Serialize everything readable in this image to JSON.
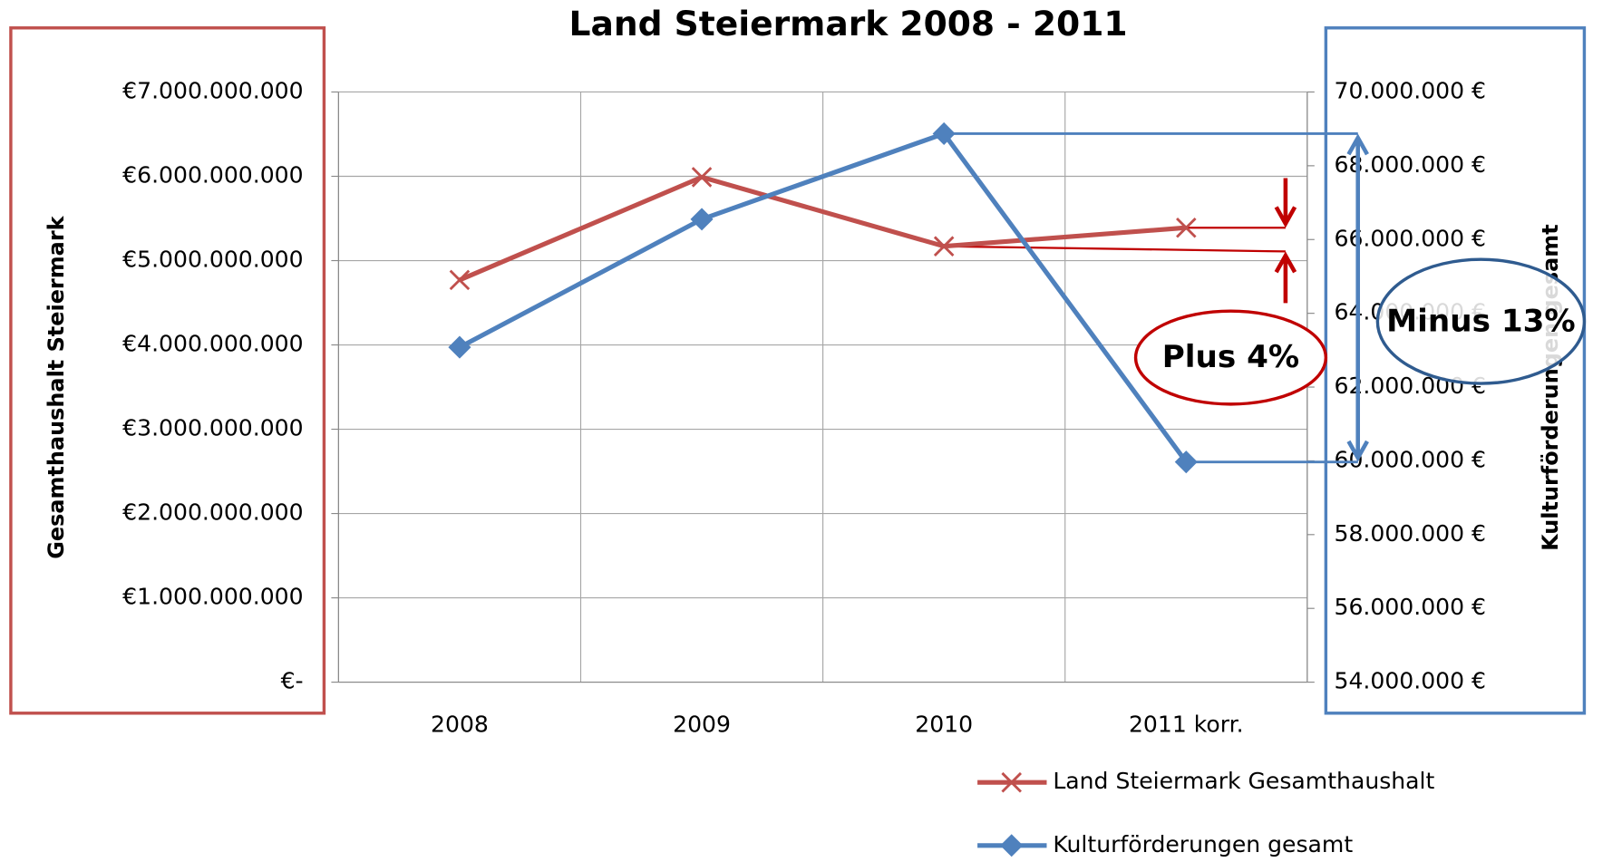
{
  "chart_data": {
    "type": "line",
    "title": "Land Steiermark 2008 - 2011",
    "y_label": "Gesamthaushalt  Steiermark",
    "y2_label": "Kulturförderungen gesamt",
    "categories": [
      "2008",
      "2009",
      "2010",
      "2011 korr."
    ],
    "series": [
      {
        "name": "Land Steiermark Gesamthaushalt",
        "color": "#c0504d",
        "marker": "x",
        "values": [
          4770000000,
          5990000000,
          5170000000,
          5390000000
        ]
      },
      {
        "name": "Kulturförderungen gesamt",
        "color": "#4f81bd",
        "marker": "diamond",
        "axis": "y2",
        "values": [
          63080000,
          66550000,
          68870000,
          59970000
        ]
      }
    ],
    "ylim": [
      0,
      7000000000
    ],
    "yticks": [
      {
        "value": 0,
        "label": "€-"
      },
      {
        "value": 1000000000,
        "label": "€1.000.000.000"
      },
      {
        "value": 2000000000,
        "label": "€2.000.000.000"
      },
      {
        "value": 3000000000,
        "label": "€3.000.000.000"
      },
      {
        "value": 4000000000,
        "label": "€4.000.000.000"
      },
      {
        "value": 5000000000,
        "label": "€5.000.000.000"
      },
      {
        "value": 6000000000,
        "label": "€6.000.000.000"
      },
      {
        "value": 7000000000,
        "label": "€7.000.000.000"
      }
    ],
    "y2lim": [
      54000000,
      70000000
    ],
    "y2ticks": [
      {
        "value": 54000000,
        "label": "54.000.000 €"
      },
      {
        "value": 56000000,
        "label": "56.000.000 €"
      },
      {
        "value": 58000000,
        "label": "58.000.000 €"
      },
      {
        "value": 60000000,
        "label": "60.000.000 €"
      },
      {
        "value": 62000000,
        "label": "62.000.000 €"
      },
      {
        "value": 64000000,
        "label": "64.000.000 €"
      },
      {
        "value": 66000000,
        "label": "66.000.000 €"
      },
      {
        "value": 68000000,
        "label": "68.000.000 €"
      },
      {
        "value": 70000000,
        "label": "70.000.000 €"
      }
    ],
    "grid": true,
    "legend": "bottom right",
    "annotations": [
      "Plus 4%",
      "Minus 13%"
    ]
  }
}
